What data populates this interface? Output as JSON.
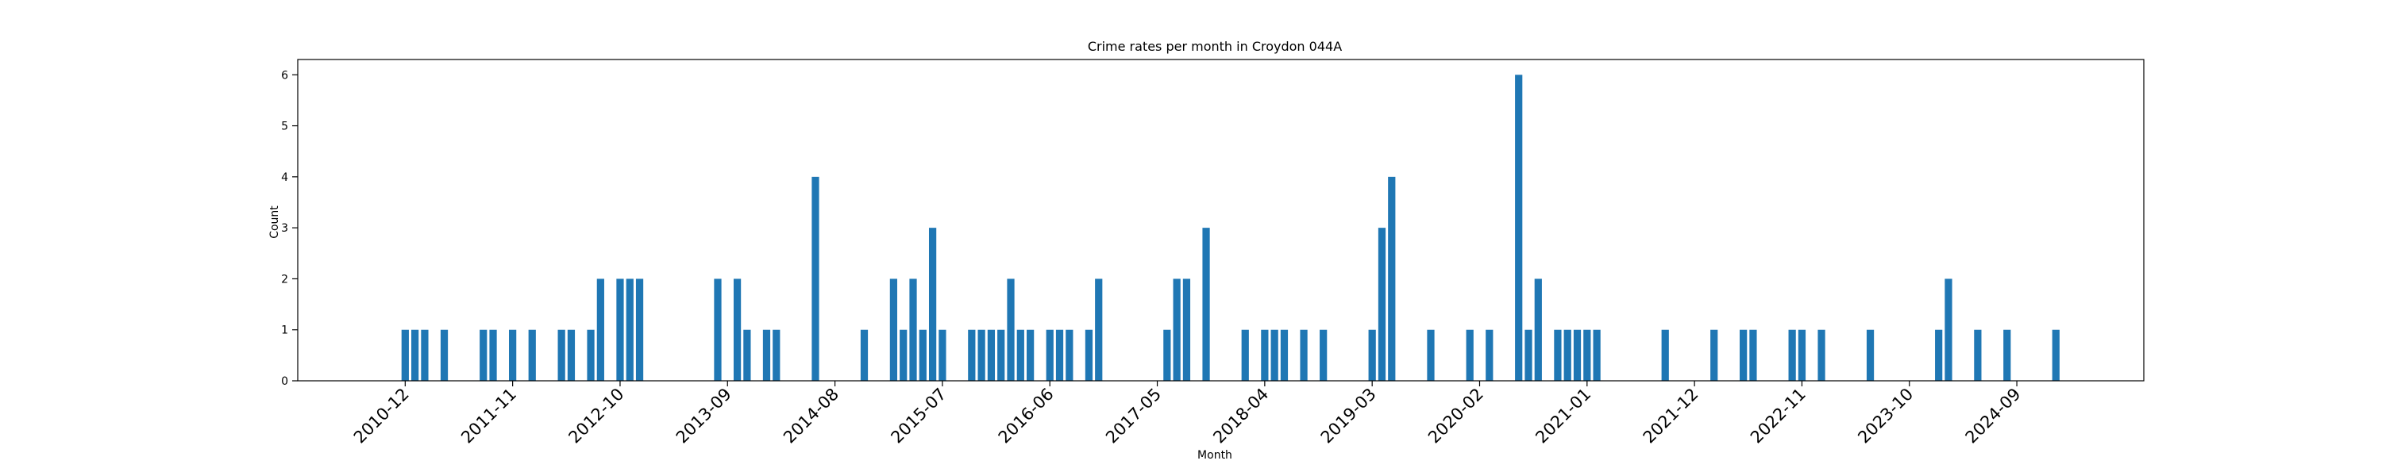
{
  "chart_data": {
    "type": "bar",
    "title": "Crime rates per month in Croydon 044A",
    "xlabel": "Month",
    "ylabel": "Count",
    "ylim": [
      0,
      6.3
    ],
    "xlim": [
      "2010-01",
      "2025-10"
    ],
    "yticks": [
      0,
      1,
      2,
      3,
      4,
      5,
      6
    ],
    "xticks": [
      "2010-12",
      "2011-11",
      "2012-10",
      "2013-09",
      "2014-08",
      "2015-07",
      "2016-06",
      "2017-05",
      "2018-04",
      "2019-03",
      "2020-02",
      "2021-01",
      "2021-12",
      "2022-11",
      "2023-10",
      "2024-09"
    ],
    "bar_color": "#1f77b4",
    "grid": false,
    "legend": "none",
    "points": [
      {
        "x": "2010-12",
        "y": 1
      },
      {
        "x": "2011-01",
        "y": 1
      },
      {
        "x": "2011-02",
        "y": 1
      },
      {
        "x": "2011-04",
        "y": 1
      },
      {
        "x": "2011-08",
        "y": 1
      },
      {
        "x": "2011-09",
        "y": 1
      },
      {
        "x": "2011-11",
        "y": 1
      },
      {
        "x": "2012-01",
        "y": 1
      },
      {
        "x": "2012-04",
        "y": 1
      },
      {
        "x": "2012-05",
        "y": 1
      },
      {
        "x": "2012-07",
        "y": 1
      },
      {
        "x": "2012-08",
        "y": 2
      },
      {
        "x": "2012-10",
        "y": 2
      },
      {
        "x": "2012-11",
        "y": 2
      },
      {
        "x": "2012-12",
        "y": 2
      },
      {
        "x": "2013-08",
        "y": 2
      },
      {
        "x": "2013-10",
        "y": 2
      },
      {
        "x": "2013-11",
        "y": 1
      },
      {
        "x": "2014-01",
        "y": 1
      },
      {
        "x": "2014-02",
        "y": 1
      },
      {
        "x": "2014-06",
        "y": 4
      },
      {
        "x": "2014-11",
        "y": 1
      },
      {
        "x": "2015-02",
        "y": 2
      },
      {
        "x": "2015-03",
        "y": 1
      },
      {
        "x": "2015-04",
        "y": 2
      },
      {
        "x": "2015-05",
        "y": 1
      },
      {
        "x": "2015-06",
        "y": 3
      },
      {
        "x": "2015-07",
        "y": 1
      },
      {
        "x": "2015-10",
        "y": 1
      },
      {
        "x": "2015-11",
        "y": 1
      },
      {
        "x": "2015-12",
        "y": 1
      },
      {
        "x": "2016-01",
        "y": 1
      },
      {
        "x": "2016-02",
        "y": 2
      },
      {
        "x": "2016-03",
        "y": 1
      },
      {
        "x": "2016-04",
        "y": 1
      },
      {
        "x": "2016-06",
        "y": 1
      },
      {
        "x": "2016-07",
        "y": 1
      },
      {
        "x": "2016-08",
        "y": 1
      },
      {
        "x": "2016-10",
        "y": 1
      },
      {
        "x": "2016-11",
        "y": 2
      },
      {
        "x": "2017-06",
        "y": 1
      },
      {
        "x": "2017-07",
        "y": 2
      },
      {
        "x": "2017-08",
        "y": 2
      },
      {
        "x": "2017-10",
        "y": 3
      },
      {
        "x": "2018-02",
        "y": 1
      },
      {
        "x": "2018-04",
        "y": 1
      },
      {
        "x": "2018-05",
        "y": 1
      },
      {
        "x": "2018-06",
        "y": 1
      },
      {
        "x": "2018-08",
        "y": 1
      },
      {
        "x": "2018-10",
        "y": 1
      },
      {
        "x": "2019-03",
        "y": 1
      },
      {
        "x": "2019-04",
        "y": 3
      },
      {
        "x": "2019-05",
        "y": 4
      },
      {
        "x": "2019-09",
        "y": 1
      },
      {
        "x": "2020-01",
        "y": 1
      },
      {
        "x": "2020-03",
        "y": 1
      },
      {
        "x": "2020-06",
        "y": 6
      },
      {
        "x": "2020-07",
        "y": 1
      },
      {
        "x": "2020-08",
        "y": 2
      },
      {
        "x": "2020-10",
        "y": 1
      },
      {
        "x": "2020-11",
        "y": 1
      },
      {
        "x": "2020-12",
        "y": 1
      },
      {
        "x": "2021-01",
        "y": 1
      },
      {
        "x": "2021-02",
        "y": 1
      },
      {
        "x": "2021-09",
        "y": 1
      },
      {
        "x": "2022-02",
        "y": 1
      },
      {
        "x": "2022-05",
        "y": 1
      },
      {
        "x": "2022-06",
        "y": 1
      },
      {
        "x": "2022-10",
        "y": 1
      },
      {
        "x": "2022-11",
        "y": 1
      },
      {
        "x": "2023-01",
        "y": 1
      },
      {
        "x": "2023-06",
        "y": 1
      },
      {
        "x": "2024-01",
        "y": 1
      },
      {
        "x": "2024-02",
        "y": 2
      },
      {
        "x": "2024-05",
        "y": 1
      },
      {
        "x": "2024-08",
        "y": 1
      },
      {
        "x": "2025-01",
        "y": 1
      }
    ]
  }
}
